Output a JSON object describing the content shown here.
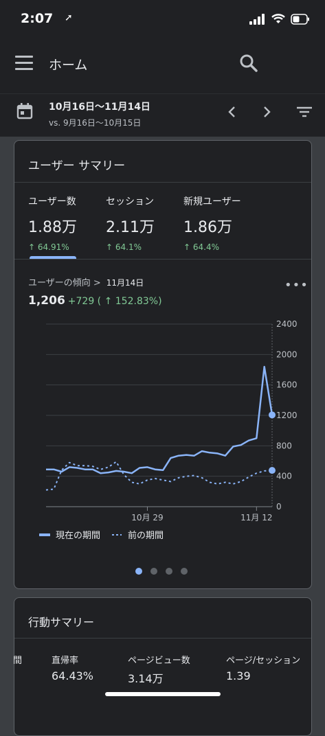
{
  "status": {
    "time": "2:07",
    "location_glyph": "➚",
    "icons": [
      "signal-icon",
      "wifi-icon",
      "battery-icon"
    ]
  },
  "appbar": {
    "title": "ホーム"
  },
  "date_range": {
    "range": "10月16日〜11月14日",
    "compare": "vs. 9月16日〜10月15日"
  },
  "summary": {
    "title": "ユーザー サマリー",
    "metrics": [
      {
        "label": "ユーザー数",
        "value": "1.88万",
        "change": "↑ 64.91%"
      },
      {
        "label": "セッション",
        "value": "2.11万",
        "change": "↑ 64.1%"
      },
      {
        "label": "新規ユーザー",
        "value": "1.86万",
        "change": "↑ 64.4%"
      }
    ],
    "trend_label": "ユーザーの傾向  >",
    "trend_date": "11月14日",
    "trend_value": "1,206",
    "trend_delta": "+729 ( ↑ 152.83%)",
    "legend_current": "現在の期間",
    "legend_previous": "前の期間",
    "page_count": 4,
    "page_active": 0
  },
  "behavior": {
    "title": "行動サマリー",
    "columns": [
      {
        "header": "間",
        "value": ""
      },
      {
        "header": "直帰率",
        "value": "64.43%"
      },
      {
        "header": "ページビュー数",
        "value": "3.14万"
      },
      {
        "header": "ページ/セッション",
        "value": "1.39"
      }
    ]
  },
  "colors": {
    "accent": "#8ab4f8",
    "positive": "#81c995",
    "surface": "#202124",
    "background": "#3b3e42"
  },
  "chart_data": {
    "type": "line",
    "x": [
      "10/16",
      "10/17",
      "10/18",
      "10/19",
      "10/20",
      "10/21",
      "10/22",
      "10/23",
      "10/24",
      "10/25",
      "10/26",
      "10/27",
      "10/28",
      "10/29",
      "10/30",
      "10/31",
      "11/1",
      "11/2",
      "11/3",
      "11/4",
      "11/5",
      "11/6",
      "11/7",
      "11/8",
      "11/9",
      "11/10",
      "11/11",
      "11/12",
      "11/13",
      "11/14"
    ],
    "xticks": [
      "10月 29",
      "11月 12"
    ],
    "yticks": [
      0,
      400,
      800,
      1200,
      1600,
      2000,
      2400
    ],
    "ylim": [
      0,
      2400
    ],
    "series": [
      {
        "name": "現在の期間",
        "style": "solid",
        "color": "#8ab4f8",
        "values": [
          490,
          490,
          460,
          520,
          510,
          490,
          490,
          440,
          450,
          470,
          460,
          440,
          510,
          520,
          490,
          480,
          640,
          670,
          680,
          670,
          730,
          710,
          700,
          670,
          790,
          810,
          870,
          900,
          1840,
          1206
        ]
      },
      {
        "name": "前の期間",
        "style": "dotted",
        "color": "#8ab4f8",
        "values": [
          220,
          230,
          480,
          580,
          540,
          540,
          530,
          490,
          520,
          590,
          420,
          320,
          300,
          350,
          370,
          350,
          330,
          380,
          400,
          410,
          380,
          320,
          300,
          320,
          300,
          330,
          390,
          440,
          470,
          477
        ]
      }
    ]
  }
}
